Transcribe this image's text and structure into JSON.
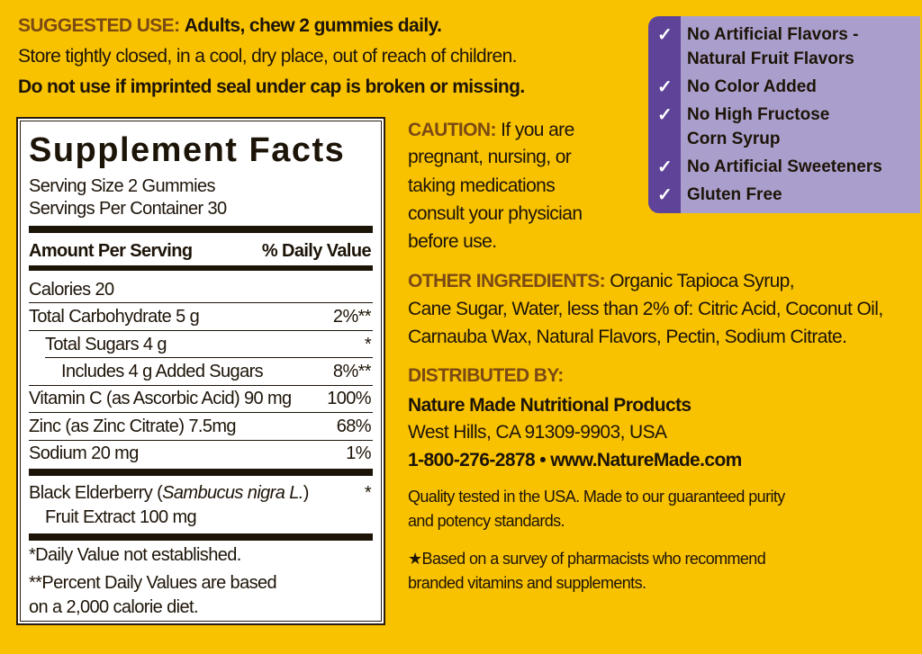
{
  "suggested_use": {
    "heading": "SUGGESTED USE:",
    "text": "Adults, chew 2 gummies daily.",
    "storage": "Store tightly closed, in a cool, dry place, out of reach of children.",
    "warning": "Do not use if imprinted seal under cap is broken or missing."
  },
  "supplement_facts": {
    "title": "Supplement Facts",
    "serving_size": "Serving Size 2 Gummies",
    "servings_per_container": "Servings Per Container 30",
    "header_amount": "Amount Per Serving",
    "header_dv": "% Daily Value",
    "rows": [
      {
        "name": "Calories  20",
        "dv": ""
      },
      {
        "name": "Total Carbohydrate  5 g",
        "dv": "2%**"
      },
      {
        "name": "Total Sugars  4 g",
        "dv": "*"
      },
      {
        "name": "Includes 4 g Added Sugars",
        "dv": "8%**"
      },
      {
        "name": "Vitamin C (as Ascorbic Acid)  90 mg",
        "dv": "100%"
      },
      {
        "name": "Zinc (as Zinc Citrate) 7.5mg",
        "dv": "68%"
      },
      {
        "name": "Sodium  20 mg",
        "dv": "1%"
      }
    ],
    "elderberry": {
      "name": "Black Elderberry  (",
      "latin": "Sambucus nigra L.",
      "close": ")",
      "line2": "Fruit Extract 100 mg",
      "dv": "*"
    },
    "footnote_1": "*Daily Value not established.",
    "footnote_2a": "**Percent Daily Values are based",
    "footnote_2b": "on a 2,000 calorie diet."
  },
  "caution": {
    "heading": "CAUTION:",
    "lines": [
      "If you are",
      "pregnant, nursing, or",
      "taking medications",
      "consult your physician",
      "before use."
    ]
  },
  "claims": {
    "check_icon": "checkmark",
    "items": [
      {
        "lines": [
          "No Artificial Flavors -",
          "Natural Fruit Flavors"
        ]
      },
      {
        "lines": [
          "No Color Added"
        ]
      },
      {
        "lines": [
          "No High Fructose",
          "Corn Syrup"
        ]
      },
      {
        "lines": [
          "No Artificial Sweeteners"
        ]
      },
      {
        "lines": [
          "Gluten Free"
        ]
      }
    ],
    "colors": {
      "strip": "#5e4399",
      "panel": "#aa9ecc"
    }
  },
  "other_ingredients": {
    "heading": "OTHER INGREDIENTS:",
    "line1": "Organic Tapioca Syrup,",
    "line2": "Cane Sugar, Water, less than 2% of: Citric Acid, Coconut Oil,",
    "line3": "Carnauba Wax, Natural Flavors, Pectin, Sodium Citrate."
  },
  "distributed_by": {
    "heading": "DISTRIBUTED BY:",
    "company": "Nature Made Nutritional Products",
    "address": "West Hills, CA 91309-9903, USA",
    "contact": "1-800-276-2878 • www.NatureMade.com"
  },
  "quality": {
    "line1": "Quality tested in the USA. Made to our guaranteed purity",
    "line2": "and potency standards."
  },
  "survey": {
    "line1": "★Based on a survey of pharmacists who recommend",
    "line2": "branded vitamins and supplements."
  },
  "colors": {
    "background": "#f9c200",
    "heading_brown": "#7b4a14",
    "text": "#1d1408"
  }
}
